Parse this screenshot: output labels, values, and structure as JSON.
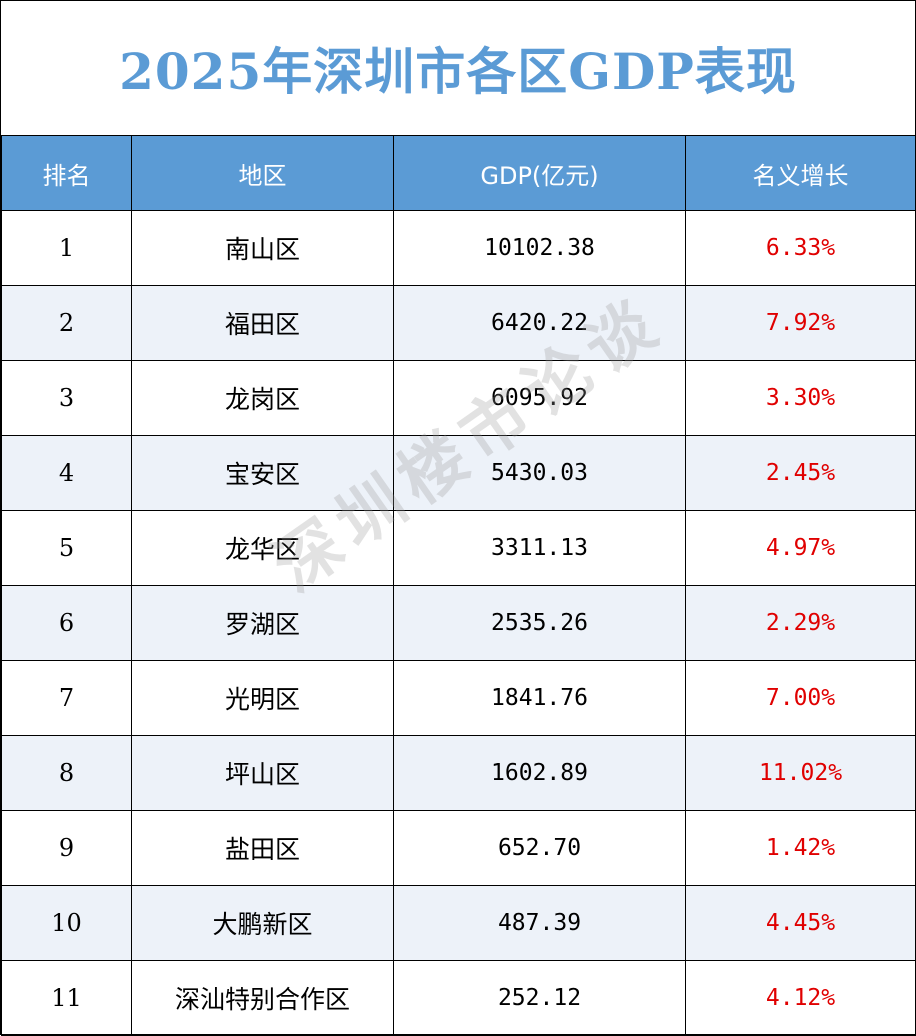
{
  "title": "2025年深圳市各区GDP表现",
  "headers": [
    "排名",
    "地区",
    "GDP(亿元)",
    "名义增长"
  ],
  "rows": [
    {
      "rank": "1",
      "district": "南山区",
      "gdp": "10102.38",
      "growth": "6.33%"
    },
    {
      "rank": "2",
      "district": "福田区",
      "gdp": "6420.22",
      "growth": "7.92%"
    },
    {
      "rank": "3",
      "district": "龙岗区",
      "gdp": "6095.92",
      "growth": "3.30%"
    },
    {
      "rank": "4",
      "district": "宝安区",
      "gdp": "5430.03",
      "growth": "2.45%"
    },
    {
      "rank": "5",
      "district": "龙华区",
      "gdp": "3311.13",
      "growth": "4.97%"
    },
    {
      "rank": "6",
      "district": "罗湖区",
      "gdp": "2535.26",
      "growth": "2.29%"
    },
    {
      "rank": "7",
      "district": "光明区",
      "gdp": "1841.76",
      "growth": "7.00%"
    },
    {
      "rank": "8",
      "district": "坪山区",
      "gdp": "1602.89",
      "growth": "11.02%"
    },
    {
      "rank": "9",
      "district": "盐田区",
      "gdp": "652.70",
      "growth": "1.42%"
    },
    {
      "rank": "10",
      "district": "大鹏新区",
      "gdp": "487.39",
      "growth": "4.45%"
    },
    {
      "rank": "11",
      "district": "深汕特别合作区",
      "gdp": "252.12",
      "growth": "4.12%"
    }
  ],
  "watermark": "深圳楼市论谈",
  "colors": {
    "header_bg": "#5b9bd5",
    "title": "#5b9bd5",
    "growth": "#e00000",
    "alt_row": "#edf2f9"
  }
}
